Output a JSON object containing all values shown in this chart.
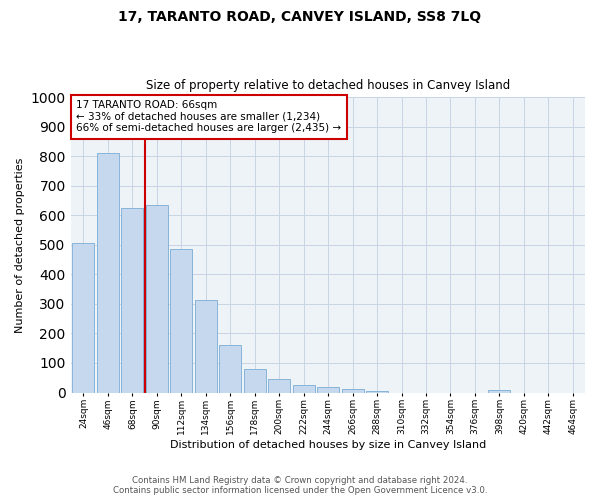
{
  "title": "17, TARANTO ROAD, CANVEY ISLAND, SS8 7LQ",
  "subtitle": "Size of property relative to detached houses in Canvey Island",
  "xlabel": "Distribution of detached houses by size in Canvey Island",
  "ylabel": "Number of detached properties",
  "bin_labels": [
    "24sqm",
    "46sqm",
    "68sqm",
    "90sqm",
    "112sqm",
    "134sqm",
    "156sqm",
    "178sqm",
    "200sqm",
    "222sqm",
    "244sqm",
    "266sqm",
    "288sqm",
    "310sqm",
    "332sqm",
    "354sqm",
    "376sqm",
    "398sqm",
    "420sqm",
    "442sqm",
    "464sqm"
  ],
  "bar_heights": [
    505,
    810,
    625,
    635,
    485,
    312,
    162,
    80,
    47,
    27,
    20,
    12,
    6,
    0,
    0,
    0,
    0,
    8,
    0,
    0,
    0
  ],
  "bar_fill_color": "#c5d8ed",
  "bar_edge_color": "#7aadd4",
  "marker_bin_index": 2,
  "annotation_line1": "17 TARANTO ROAD: 66sqm",
  "annotation_line2": "← 33% of detached houses are smaller (1,234)",
  "annotation_line3": "66% of semi-detached houses are larger (2,435) →",
  "annotation_box_color": "#ffffff",
  "annotation_box_edge_color": "#cc0000",
  "vline_color": "#cc0000",
  "ylim": [
    0,
    1000
  ],
  "yticks": [
    0,
    100,
    200,
    300,
    400,
    500,
    600,
    700,
    800,
    900,
    1000
  ],
  "footer_text": "Contains HM Land Registry data © Crown copyright and database right 2024.\nContains public sector information licensed under the Open Government Licence v3.0.",
  "background_color": "#ffffff",
  "plot_bg_color": "#eef3f8",
  "grid_color": "#c8d4e4"
}
